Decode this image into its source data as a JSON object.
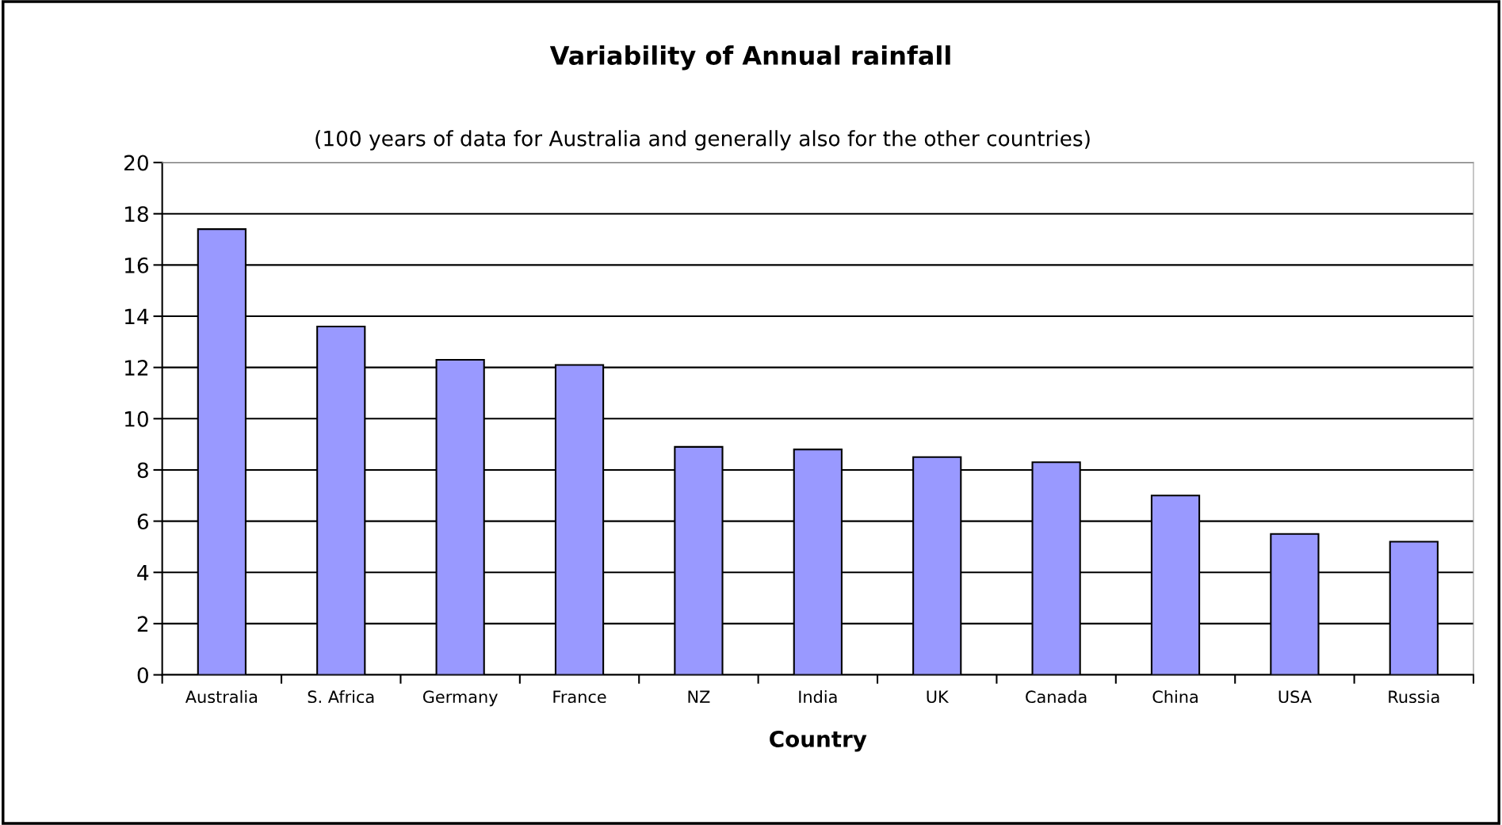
{
  "chart_data": {
    "type": "bar",
    "title": "Variability of Annual rainfall",
    "subtitle": "(100 years of data for Australia and generally also for the other countries)",
    "xlabel": "Country",
    "categories": [
      "Australia",
      "S. Africa",
      "Germany",
      "France",
      "NZ",
      "India",
      "UK",
      "Canada",
      "China",
      "USA",
      "Russia"
    ],
    "values": [
      17.4,
      13.6,
      12.3,
      12.1,
      8.9,
      8.8,
      8.5,
      8.3,
      7.0,
      5.5,
      5.2
    ],
    "color": "#9999ff",
    "ylim": [
      0,
      20
    ],
    "yticks": [
      0,
      2,
      4,
      6,
      8,
      10,
      12,
      14,
      16,
      18,
      20
    ],
    "grid": "y"
  }
}
